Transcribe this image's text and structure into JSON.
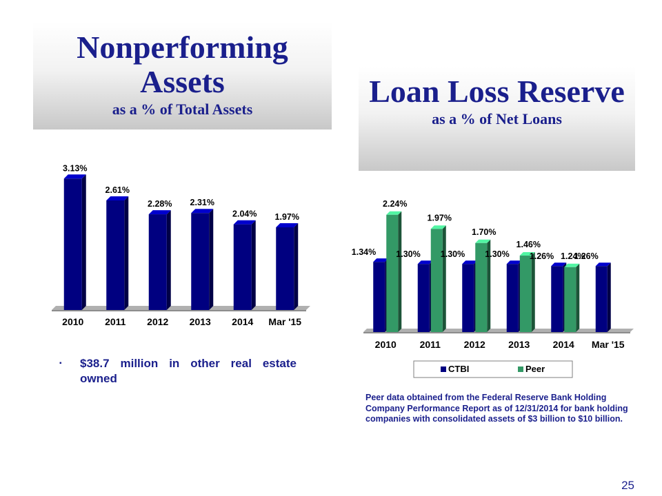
{
  "npa_title": {
    "main": "Nonperforming Assets",
    "sub": "as a % of Total Assets"
  },
  "llr_title": {
    "main": "Loan Loss Reserve",
    "sub": "as a % of Net Loans"
  },
  "bullet": {
    "marker": "▪",
    "text": "$38.7 million in other real estate owned"
  },
  "footnote": "Peer data obtained from the Federal Reserve Bank Holding Company Performance Report as of 12/31/2014 for bank holding companies with consolidated assets of $3 billion to $10 billion.",
  "page_number": "25",
  "colors": {
    "title": "#1a1f8c",
    "ctbi": "#000080",
    "peer": "#339966"
  },
  "chart_data": [
    {
      "type": "bar",
      "title": "Nonperforming Assets as a % of Total Assets",
      "categories": [
        "2010",
        "2011",
        "2012",
        "2013",
        "2014",
        "Mar '15"
      ],
      "series": [
        {
          "values": [
            3.13,
            2.61,
            2.28,
            2.31,
            2.04,
            1.97
          ],
          "labels": [
            "3.13%",
            "2.61%",
            "2.28%",
            "2.31%",
            "2.04%",
            "1.97%"
          ]
        }
      ],
      "ylim": [
        0,
        3.2
      ],
      "grid": false,
      "style": "3d"
    },
    {
      "type": "bar",
      "title": "Loan Loss Reserve as a % of Net Loans",
      "categories": [
        "2010",
        "2011",
        "2012",
        "2013",
        "2014",
        "Mar '15"
      ],
      "series": [
        {
          "name": "CTBI",
          "values": [
            1.34,
            1.3,
            1.3,
            1.3,
            1.26,
            1.26
          ],
          "labels": [
            "1.34%",
            "1.30%",
            "1.30%",
            "1.30%",
            "1.26%",
            "1.26%"
          ]
        },
        {
          "name": "Peer",
          "values": [
            2.24,
            1.97,
            1.7,
            1.46,
            1.24,
            null
          ],
          "labels": [
            "2.24%",
            "1.97%",
            "1.70%",
            "1.46%",
            "1.24%",
            null
          ]
        }
      ],
      "ylim": [
        0,
        2.5
      ],
      "grid": false,
      "legend": "bottom",
      "style": "3d"
    }
  ]
}
